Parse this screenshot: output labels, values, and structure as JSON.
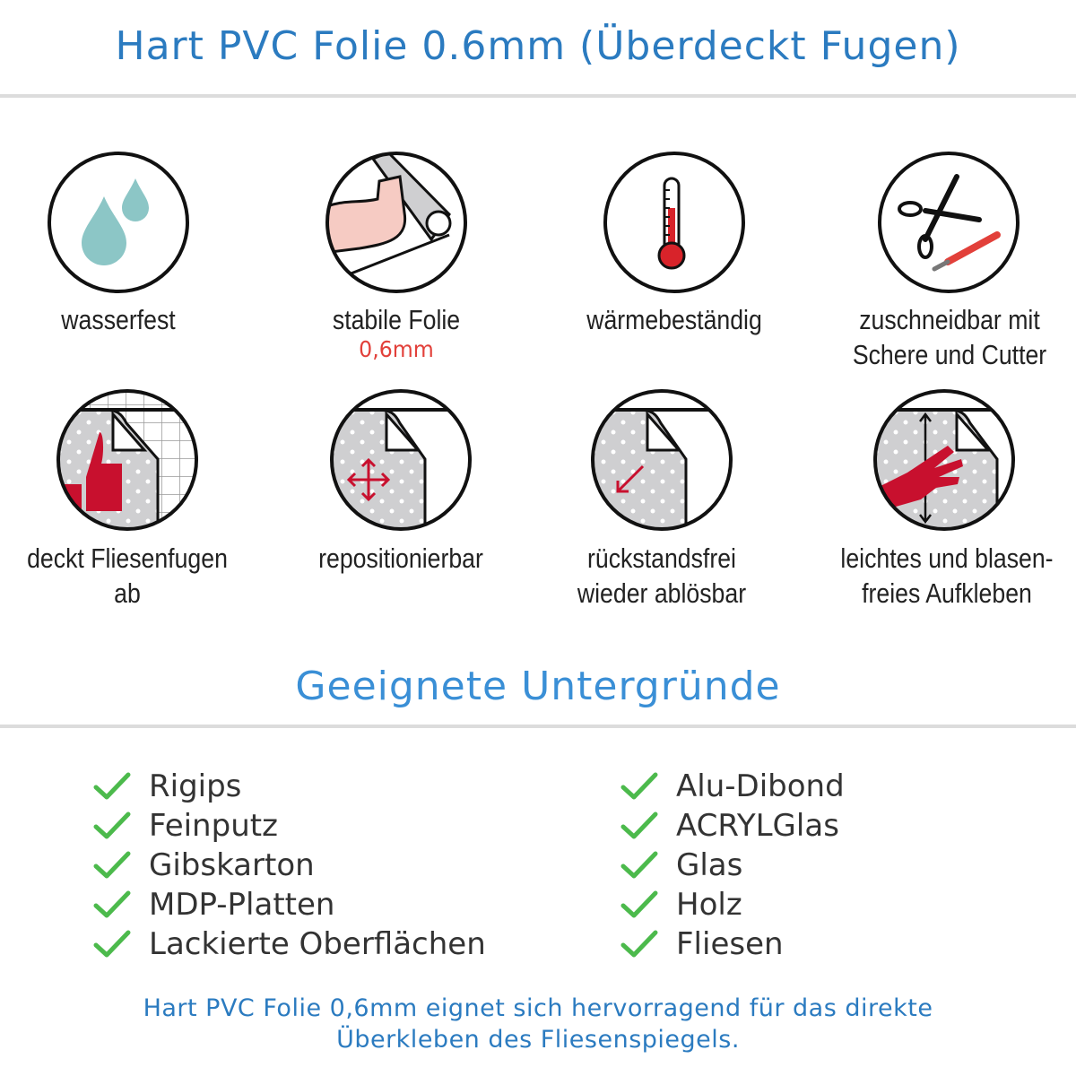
{
  "header": {
    "title": "Hart PVC Folie 0.6mm (Überdeckt Fugen)"
  },
  "features": [
    {
      "icon": "water-drops-icon",
      "label": "wasserfest"
    },
    {
      "icon": "strong-arm-foil-icon",
      "label": "stabile Folie",
      "sub": "0,6mm"
    },
    {
      "icon": "thermometer-icon",
      "label": "wärmebeständig"
    },
    {
      "icon": "scissors-cutter-icon",
      "label": "zuschneidbar mit",
      "label2": "Schere und Cutter"
    },
    {
      "icon": "thumbs-up-tiles-icon",
      "label": "deckt Fliesenfugen ab"
    },
    {
      "icon": "move-arrows-icon",
      "label": "repositionierbar"
    },
    {
      "icon": "peel-arrow-icon",
      "label": "rückstandsfrei",
      "label2": "wieder ablösbar"
    },
    {
      "icon": "hand-smooth-icon",
      "label": "leichtes und blasen-",
      "label2": "freies Aufkleben"
    }
  ],
  "surfaces": {
    "title": "Geeignete Untergründe",
    "left": [
      "Rigips",
      "Feinputz",
      "Gibskarton",
      "MDP-Platten",
      "Lackierte Oberflächen"
    ],
    "right": [
      "Alu-Dibond",
      "ACRYLGlas",
      "Glas",
      "Holz",
      "Fliesen"
    ]
  },
  "footer": {
    "line1": "Hart PVC Folie 0,6mm eignet sich hervorragend für das direkte",
    "line2": "Überkleben des Fliesenspiegels."
  },
  "colors": {
    "title": "#2b7bc0",
    "check": "#4cba4c",
    "accent_red": "#e2403a",
    "drop": "#8cc6c6"
  }
}
